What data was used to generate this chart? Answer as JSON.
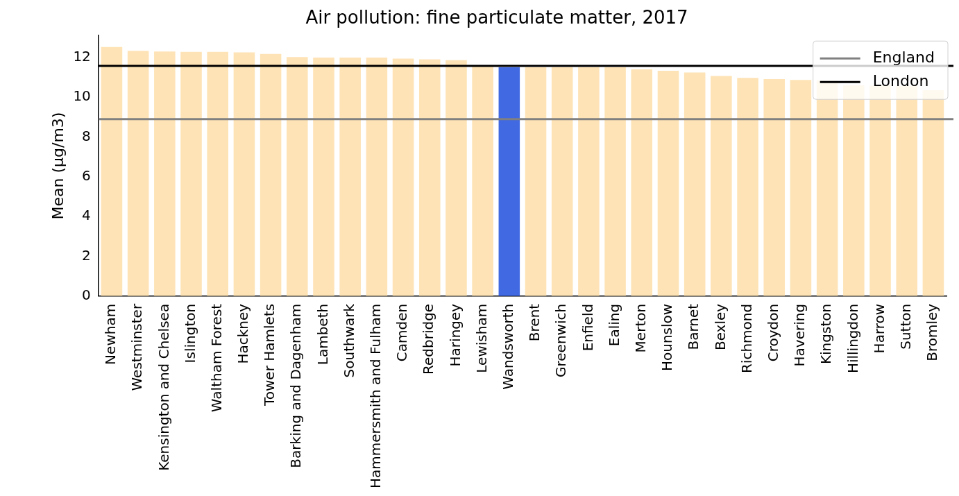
{
  "chart_data": {
    "type": "bar",
    "title": "Air pollution: fine particulate matter, 2017",
    "ylabel": "Mean (µg/m3)",
    "categories": [
      "Newham",
      "Westminster",
      "Kensington and Chelsea",
      "Islington",
      "Waltham Forest",
      "Hackney",
      "Tower Hamlets",
      "Barking and Dagenham",
      "Lambeth",
      "Southwark",
      "Hammersmith and Fulham",
      "Camden",
      "Redbridge",
      "Haringey",
      "Lewisham",
      "Wandsworth",
      "Brent",
      "Greenwich",
      "Enfield",
      "Ealing",
      "Merton",
      "Hounslow",
      "Barnet",
      "Bexley",
      "Richmond",
      "Croydon",
      "Havering",
      "Kingston",
      "Hillingdon",
      "Harrow",
      "Sutton",
      "Bromley"
    ],
    "values": [
      12.52,
      12.33,
      12.3,
      12.28,
      12.28,
      12.25,
      12.17,
      12.02,
      11.99,
      11.99,
      11.99,
      11.94,
      11.9,
      11.86,
      11.55,
      11.5,
      11.5,
      11.5,
      11.5,
      11.5,
      11.4,
      11.33,
      11.24,
      11.07,
      10.97,
      10.91,
      10.87,
      10.84,
      10.6,
      10.6,
      10.55,
      10.35
    ],
    "colors": [
      "#fee3b6",
      "#fee3b6",
      "#fee3b6",
      "#fee3b6",
      "#fee3b6",
      "#fee3b6",
      "#fee3b6",
      "#fee3b6",
      "#fee3b6",
      "#fee3b6",
      "#fee3b6",
      "#fee3b6",
      "#fee3b6",
      "#fee3b6",
      "#fee3b6",
      "#4169e1",
      "#fee3b6",
      "#fee3b6",
      "#fee3b6",
      "#fee3b6",
      "#fee3b6",
      "#fee3b6",
      "#fee3b6",
      "#fee3b6",
      "#fee3b6",
      "#fee3b6",
      "#fee3b6",
      "#fee3b6",
      "#fee3b6",
      "#fee3b6",
      "#fee3b6",
      "#fee3b6"
    ],
    "ylim": [
      0,
      13.1
    ],
    "yticks": [
      0,
      2,
      4,
      6,
      8,
      10,
      12
    ],
    "grid": false,
    "legend": "top right",
    "ref_lines": [
      {
        "axis": "y",
        "value": 8.9,
        "label": "England",
        "color": "#808080"
      },
      {
        "axis": "y",
        "value": 11.57,
        "label": "London",
        "color": "#000000"
      }
    ]
  }
}
